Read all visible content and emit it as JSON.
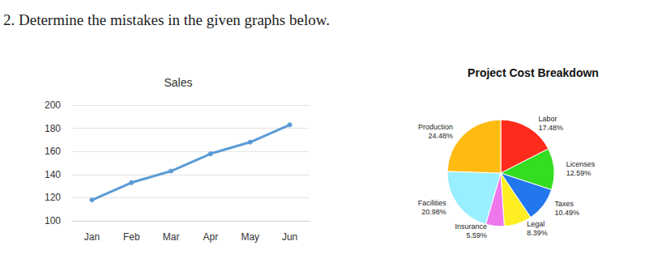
{
  "heading": "2. Determine the mistakes in the given graphs below.",
  "chart_data": [
    {
      "type": "line",
      "title": "Sales",
      "categories": [
        "Jan",
        "Feb",
        "Mar",
        "Apr",
        "May",
        "Jun"
      ],
      "values": [
        118,
        133,
        143,
        158,
        168,
        183
      ],
      "color": "#5b9bd5",
      "marker": "circle",
      "ylim": [
        100,
        200
      ],
      "yticks": [
        100,
        120,
        140,
        160,
        180,
        200
      ],
      "grid": true
    },
    {
      "type": "pie",
      "title": "Project Cost Breakdown",
      "categories": [
        "Labor",
        "Licenses",
        "Taxes",
        "Legal",
        "Insurance",
        "Facilities",
        "Production"
      ],
      "values": [
        17.48,
        12.59,
        10.49,
        8.39,
        5.59,
        20.98,
        24.48
      ],
      "value_labels": [
        "17.48%",
        "12.59%",
        "10.49%",
        "8.39%",
        "5.59%",
        "20.98%",
        "24.48%"
      ],
      "colors": [
        "#ff2b1c",
        "#33dd22",
        "#2277ee",
        "#ffee22",
        "#ee77ee",
        "#99eeff",
        "#ffbb11"
      ],
      "data_labels": true
    }
  ]
}
